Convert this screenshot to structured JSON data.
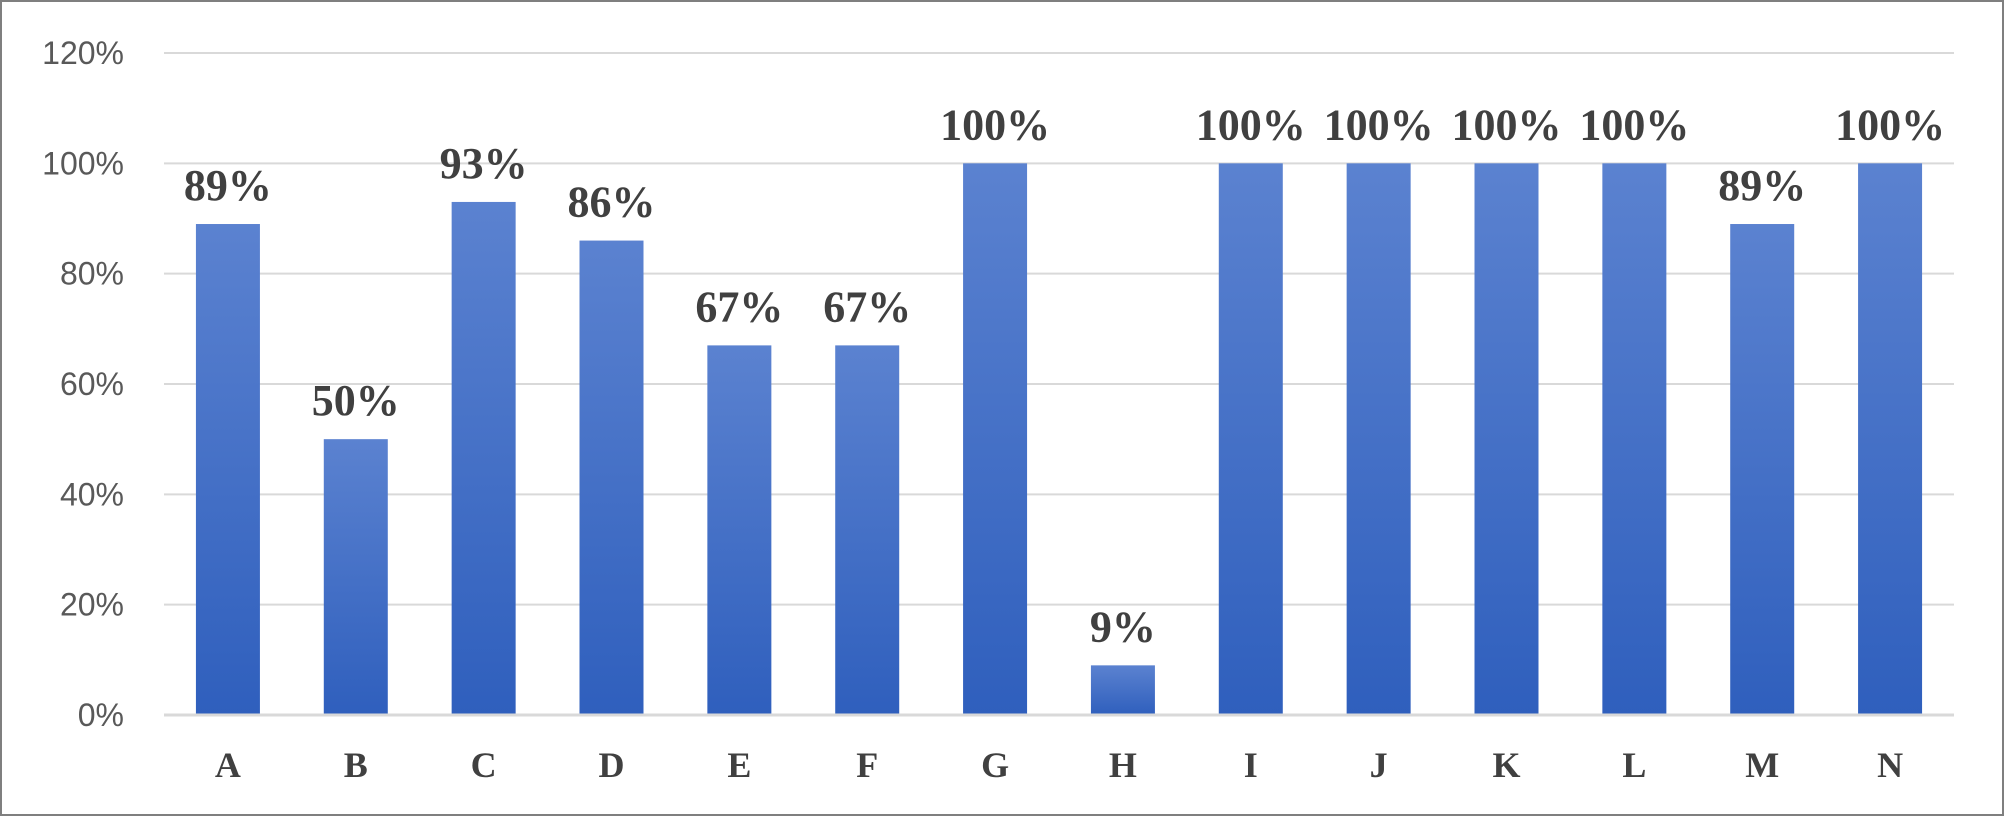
{
  "chart_data": {
    "type": "bar",
    "categories": [
      "A",
      "B",
      "C",
      "D",
      "E",
      "F",
      "G",
      "H",
      "I",
      "J",
      "K",
      "L",
      "M",
      "N"
    ],
    "values": [
      89,
      50,
      93,
      86,
      67,
      67,
      100,
      9,
      100,
      100,
      100,
      100,
      89,
      100
    ],
    "data_labels": [
      "89%",
      "50%",
      "93%",
      "86%",
      "67%",
      "67%",
      "100%",
      "9%",
      "100%",
      "100%",
      "100%",
      "100%",
      "89%",
      "100%"
    ],
    "y_ticks": [
      "0%",
      "20%",
      "40%",
      "60%",
      "80%",
      "100%",
      "120%"
    ],
    "ylim": [
      0,
      120
    ],
    "grid": "horizontal",
    "legend": "none",
    "title": "",
    "xlabel": "",
    "ylabel": "",
    "colors": {
      "bar_top": "#5b82d0",
      "bar_bottom": "#2f5fbd",
      "grid": "#d9d9d9",
      "axis": "#d9d9d9"
    }
  }
}
